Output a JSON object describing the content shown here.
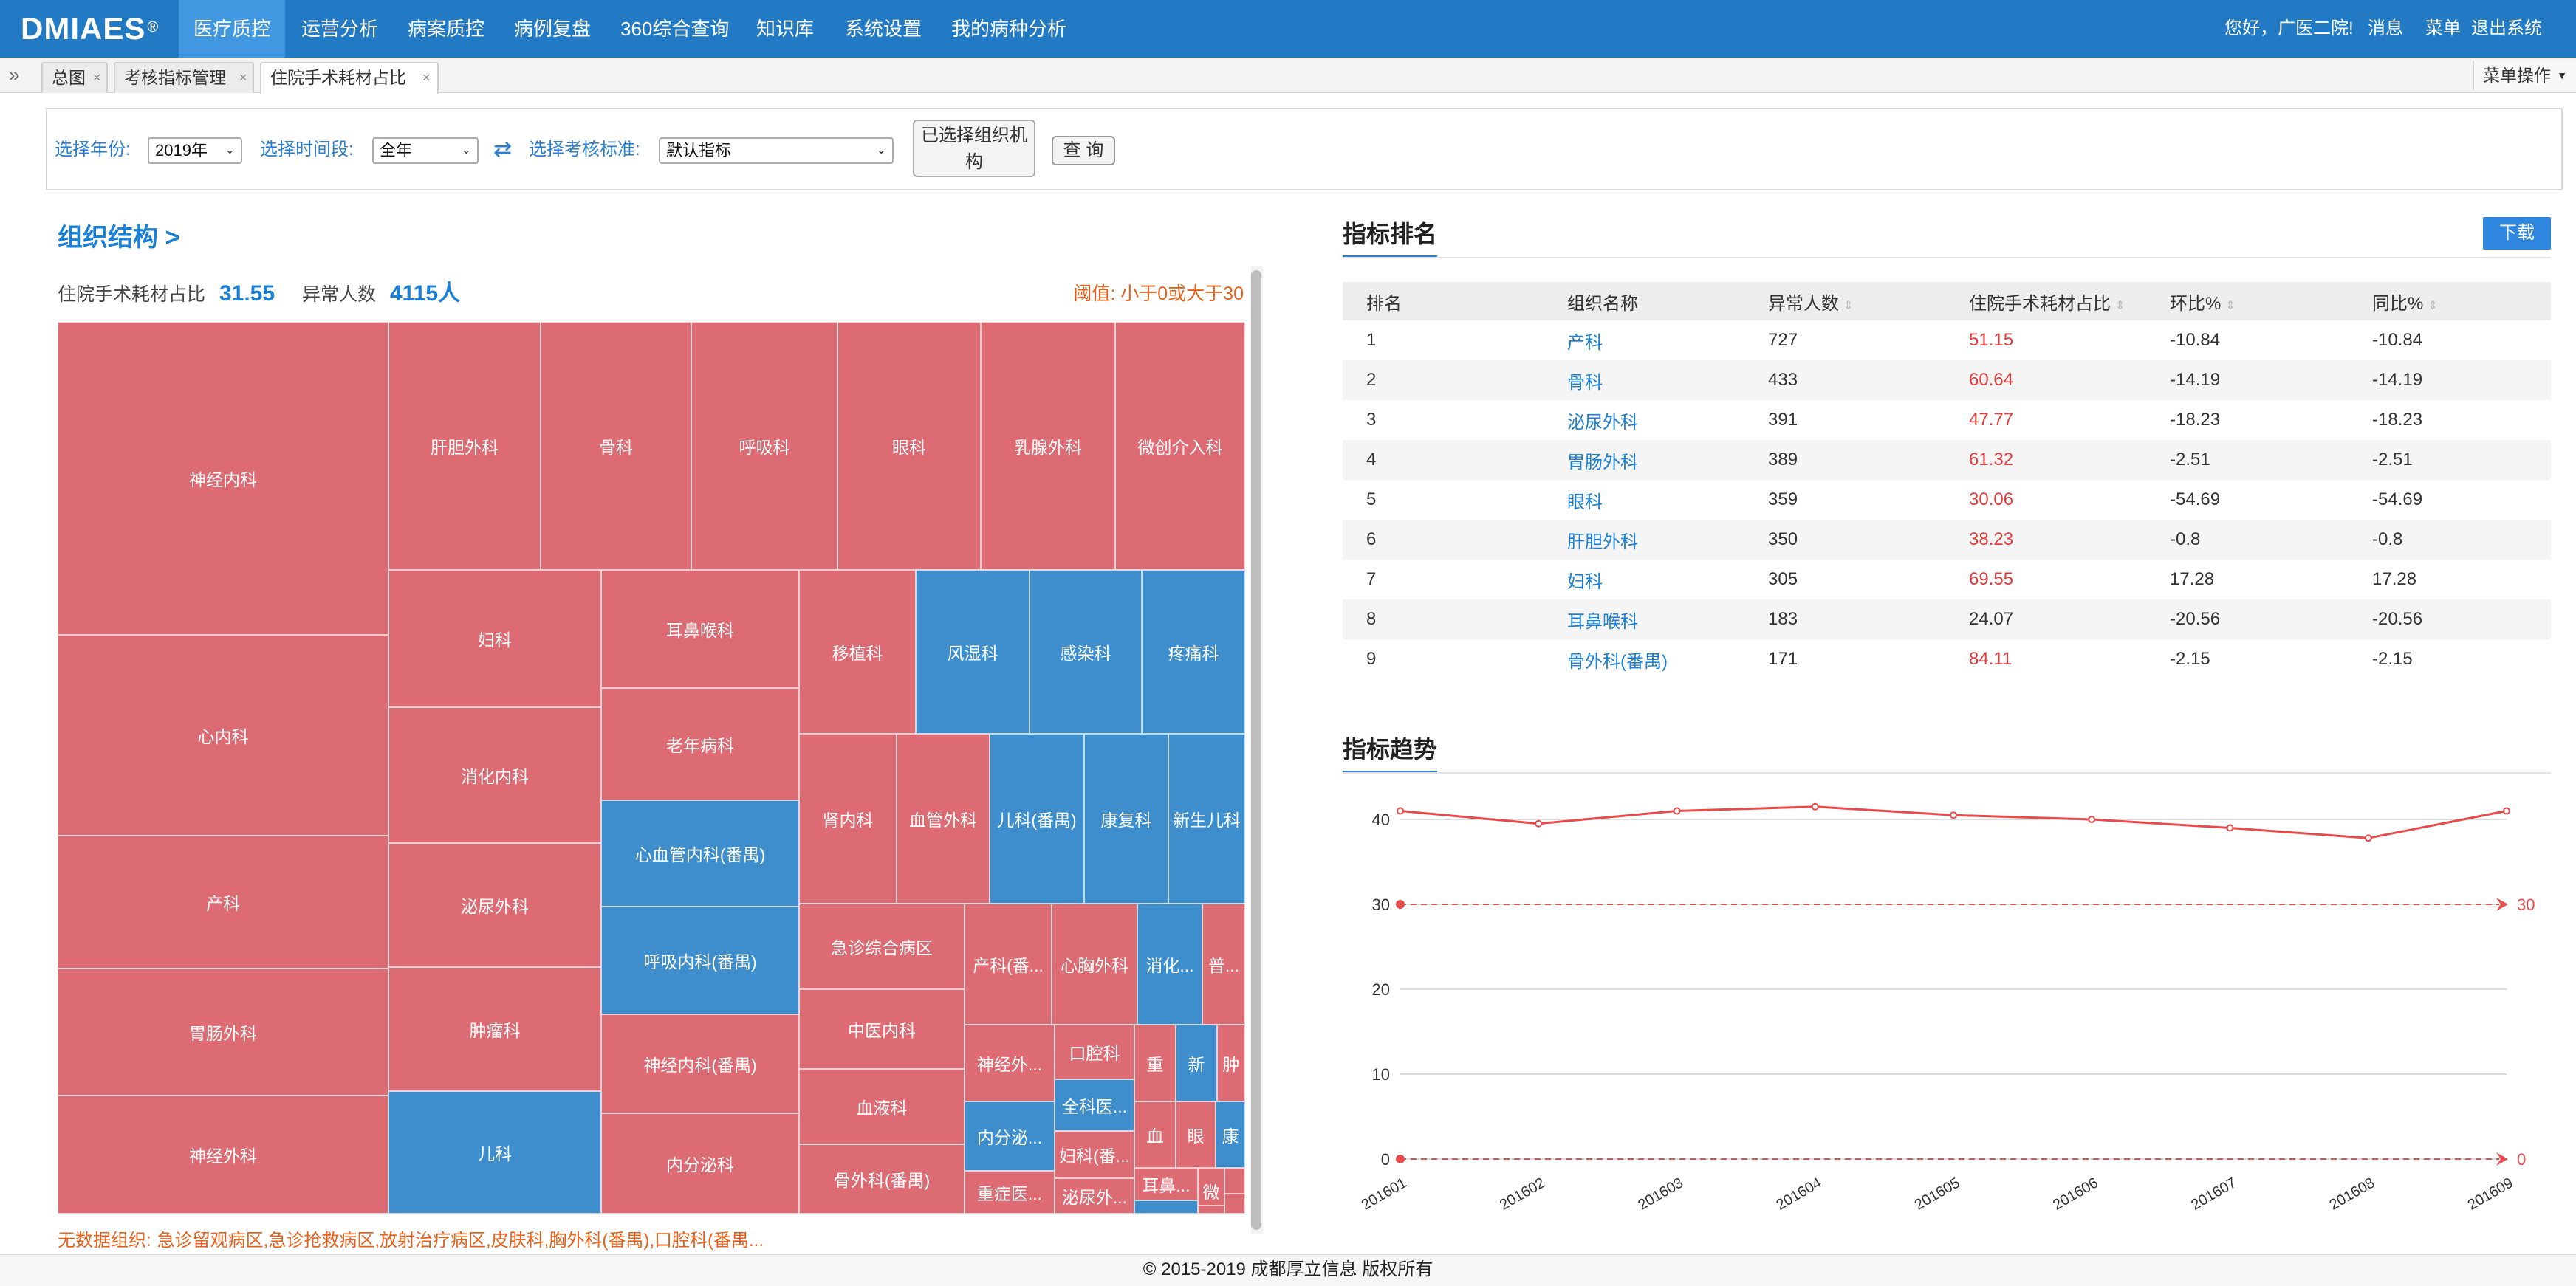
{
  "app": {
    "logo": "DMIAES",
    "logo_mark": "®"
  },
  "nav": [
    "医疗质控",
    "运营分析",
    "病案质控",
    "病例复盘",
    "360综合查询",
    "知识库",
    "系统设置",
    "我的病种分析"
  ],
  "nav_active": 0,
  "user_nav": {
    "greeting": "您好，广医二院!",
    "messages": "消息",
    "menu": "菜单",
    "logout": "退出系统"
  },
  "tabs": [
    {
      "label": "总图",
      "close": "×"
    },
    {
      "label": "考核指标管理",
      "close": "×"
    },
    {
      "label": "住院手术耗材占比",
      "close": "×"
    }
  ],
  "menu_ops": "菜单操作",
  "filters": {
    "year_label": "选择年份:",
    "year_value": "2019年",
    "period_label": "选择时间段:",
    "period_value": "全年",
    "standard_label": "选择考核标准:",
    "standard_value": "默认指标",
    "org_button": "已选择组织机构",
    "query_button": "查 询"
  },
  "org_title": "组织结构 >",
  "kpi": {
    "metric_label": "住院手术耗材占比",
    "metric_value": "31.55",
    "abnormal_label": "异常人数",
    "abnormal_value": "4115人",
    "threshold": "阈值: 小于0或大于30"
  },
  "treemap": [
    {
      "name": "神经内科",
      "color": "red"
    },
    {
      "name": "心内科",
      "color": "red"
    },
    {
      "name": "产科",
      "color": "red"
    },
    {
      "name": "胃肠外科",
      "color": "red"
    },
    {
      "name": "神经外科",
      "color": "red"
    },
    {
      "name": "肝胆外科",
      "color": "red"
    },
    {
      "name": "骨科",
      "color": "red"
    },
    {
      "name": "呼吸科",
      "color": "red"
    },
    {
      "name": "眼科",
      "color": "red"
    },
    {
      "name": "乳腺外科",
      "color": "red"
    },
    {
      "name": "微创介入科",
      "color": "red"
    },
    {
      "name": "妇科",
      "color": "red"
    },
    {
      "name": "消化内科",
      "color": "red"
    },
    {
      "name": "泌尿外科",
      "color": "red"
    },
    {
      "name": "肿瘤科",
      "color": "red"
    },
    {
      "name": "儿科",
      "color": "blue"
    },
    {
      "name": "耳鼻喉科",
      "color": "red"
    },
    {
      "name": "老年病科",
      "color": "red"
    },
    {
      "name": "心血管内科(番禺)",
      "color": "blue"
    },
    {
      "name": "呼吸内科(番禺)",
      "color": "blue"
    },
    {
      "name": "神经内科(番禺)",
      "color": "red"
    },
    {
      "name": "内分泌科",
      "color": "red"
    },
    {
      "name": "移植科",
      "color": "red"
    },
    {
      "name": "风湿科",
      "color": "blue"
    },
    {
      "name": "感染科",
      "color": "blue"
    },
    {
      "name": "疼痛科",
      "color": "blue"
    },
    {
      "name": "肾内科",
      "color": "red"
    },
    {
      "name": "血管外科",
      "color": "red"
    },
    {
      "name": "儿科(番禺)",
      "color": "blue"
    },
    {
      "name": "康复科",
      "color": "blue"
    },
    {
      "name": "新生儿科",
      "color": "blue"
    },
    {
      "name": "急诊综合病区",
      "color": "red"
    },
    {
      "name": "中医内科",
      "color": "red"
    },
    {
      "name": "血液科",
      "color": "red"
    },
    {
      "name": "骨外科(番禺)",
      "color": "red"
    },
    {
      "name": "产科(番...",
      "color": "red"
    },
    {
      "name": "心胸外科",
      "color": "red"
    },
    {
      "name": "消化...",
      "color": "blue"
    },
    {
      "name": "普...",
      "color": "red"
    },
    {
      "name": "神经外...",
      "color": "red"
    },
    {
      "name": "口腔科",
      "color": "red"
    },
    {
      "name": "内分泌...",
      "color": "blue"
    },
    {
      "name": "全科医...",
      "color": "blue"
    },
    {
      "name": "妇科(番...",
      "color": "red"
    },
    {
      "name": "重症医...",
      "color": "red"
    },
    {
      "name": "泌尿外...",
      "color": "red"
    },
    {
      "name": "重",
      "color": "red"
    },
    {
      "name": "新",
      "color": "blue"
    },
    {
      "name": "肿",
      "color": "red"
    },
    {
      "name": "血",
      "color": "red"
    },
    {
      "name": "眼",
      "color": "red"
    },
    {
      "name": "康",
      "color": "blue"
    },
    {
      "name": "耳鼻...",
      "color": "red"
    },
    {
      "name": "微",
      "color": "red"
    },
    {
      "name": "",
      "color": "red"
    },
    {
      "name": "",
      "color": "blue"
    },
    {
      "name": "",
      "color": "red"
    },
    {
      "name": "",
      "color": "red"
    }
  ],
  "nodata": {
    "label": "无数据组织:",
    "text": "急诊留观病区,急诊抢救病区,放射治疗病区,皮肤科,胸外科(番禺),口腔科(番禺..."
  },
  "ranking": {
    "title": "指标排名",
    "download": "下载",
    "columns": [
      "排名",
      "组织名称",
      "异常人数",
      "住院手术耗材占比",
      "环比%",
      "同比%"
    ],
    "rows": [
      [
        "1",
        "产科",
        "727",
        "51.15",
        "-10.84",
        "-10.84"
      ],
      [
        "2",
        "骨科",
        "433",
        "60.64",
        "-14.19",
        "-14.19"
      ],
      [
        "3",
        "泌尿外科",
        "391",
        "47.77",
        "-18.23",
        "-18.23"
      ],
      [
        "4",
        "胃肠外科",
        "389",
        "61.32",
        "-2.51",
        "-2.51"
      ],
      [
        "5",
        "眼科",
        "359",
        "30.06",
        "-54.69",
        "-54.69"
      ],
      [
        "6",
        "肝胆外科",
        "350",
        "38.23",
        "-0.8",
        "-0.8"
      ],
      [
        "7",
        "妇科",
        "305",
        "69.55",
        "17.28",
        "17.28"
      ],
      [
        "8",
        "耳鼻喉科",
        "183",
        "24.07",
        "-20.56",
        "-20.56"
      ],
      [
        "9",
        "骨外科(番禺)",
        "171",
        "84.11",
        "-2.15",
        "-2.15"
      ]
    ]
  },
  "trend": {
    "title": "指标趋势"
  },
  "chart_data": {
    "type": "line",
    "x": [
      "201601",
      "201602",
      "201603",
      "201604",
      "201605",
      "201606",
      "201607",
      "201608",
      "201609"
    ],
    "series": [
      {
        "values": [
          41,
          39.5,
          41,
          41.5,
          40.5,
          40,
          39,
          37.8,
          41
        ],
        "color": "#e84b4b"
      }
    ],
    "thresholds": [
      {
        "value": 30,
        "label": "30"
      },
      {
        "value": 0,
        "label": "0"
      }
    ],
    "yticks": [
      0,
      10,
      20,
      30,
      40
    ],
    "ylim": [
      0,
      43
    ],
    "grid": true
  },
  "footer": "© 2015-2019 成都厚立信息 版权所有"
}
